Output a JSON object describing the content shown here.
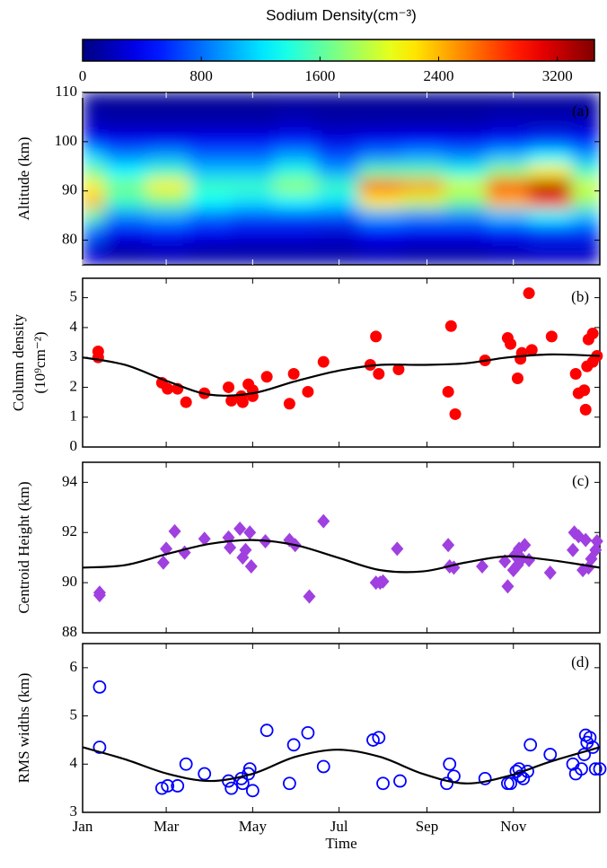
{
  "chart_data": [
    {
      "type": "heatmap",
      "colormap": "jet",
      "colorbar": {
        "label": "Sodium Density(cm⁻³)",
        "lim": [
          0,
          3450
        ],
        "ticks": [
          0,
          800,
          1600,
          2400,
          3200
        ]
      },
      "panel_label": "(a)",
      "ylabel": "Altitude (km)",
      "x": [
        0,
        30,
        60,
        90,
        120,
        150,
        180,
        210,
        240,
        270,
        300,
        330,
        360
      ],
      "y": [
        78,
        82,
        85,
        88,
        91,
        94,
        97,
        100,
        104,
        108
      ],
      "z": [
        [
          300,
          150,
          200,
          150,
          150,
          150,
          150,
          200,
          150,
          150,
          200,
          250,
          250
        ],
        [
          800,
          400,
          500,
          400,
          350,
          350,
          300,
          450,
          400,
          400,
          500,
          600,
          600
        ],
        [
          1600,
          900,
          1000,
          800,
          700,
          700,
          700,
          1000,
          900,
          900,
          1100,
          1300,
          1100
        ],
        [
          2400,
          1500,
          1700,
          1300,
          1200,
          1300,
          1200,
          2200,
          2000,
          1700,
          2400,
          2800,
          1800
        ],
        [
          2200,
          1700,
          2200,
          1500,
          1500,
          1800,
          1500,
          2700,
          2500,
          2000,
          2800,
          3300,
          2000
        ],
        [
          1700,
          1300,
          1500,
          1100,
          1100,
          1400,
          1000,
          1600,
          1600,
          1400,
          1800,
          2200,
          1500
        ],
        [
          1200,
          900,
          1000,
          800,
          800,
          1000,
          700,
          900,
          1000,
          900,
          1100,
          1300,
          1000
        ],
        [
          500,
          400,
          400,
          400,
          400,
          500,
          350,
          400,
          450,
          400,
          500,
          600,
          500
        ],
        [
          200,
          150,
          150,
          150,
          150,
          200,
          150,
          150,
          150,
          150,
          200,
          200,
          200
        ],
        [
          100,
          80,
          80,
          80,
          80,
          100,
          80,
          80,
          80,
          80,
          100,
          100,
          100
        ]
      ],
      "xlim": [
        0,
        365
      ],
      "ylim": [
        75,
        110
      ],
      "yticks": [
        80,
        90,
        100,
        110
      ]
    },
    {
      "type": "scatter",
      "panel_label": "(b)",
      "ylabel": [
        "Column density",
        "(10⁹cm⁻²)"
      ],
      "xlim": [
        0,
        365
      ],
      "ylim": [
        0,
        5.65
      ],
      "yticks": [
        0,
        1,
        2,
        3,
        4,
        5
      ],
      "series": [
        {
          "type": "scatter",
          "marker": "circle",
          "color": "#ff0000",
          "x": [
            11,
            11,
            56,
            60,
            67,
            73,
            86,
            103,
            105,
            112,
            113,
            117,
            120,
            120,
            130,
            146,
            149,
            159,
            170,
            203,
            207,
            209,
            223,
            258,
            260,
            263,
            284,
            300,
            302,
            307,
            309,
            310,
            315,
            317,
            331,
            348,
            350,
            354,
            355,
            356,
            357,
            360,
            360,
            363
          ],
          "values": [
            3.0,
            3.2,
            2.15,
            1.95,
            1.95,
            1.5,
            1.8,
            2.0,
            1.55,
            1.7,
            1.5,
            2.1,
            1.7,
            1.9,
            2.35,
            1.45,
            2.45,
            1.85,
            2.85,
            2.75,
            3.7,
            2.45,
            2.6,
            1.85,
            4.05,
            1.1,
            2.9,
            3.65,
            3.45,
            2.3,
            2.95,
            3.15,
            5.15,
            3.25,
            3.7,
            2.45,
            1.8,
            1.9,
            1.25,
            2.7,
            3.6,
            3.8,
            2.85,
            3.05
          ]
        },
        {
          "type": "line",
          "color": "#000000",
          "x": [
            0,
            30,
            60,
            90,
            120,
            150,
            180,
            210,
            240,
            270,
            300,
            330,
            365
          ],
          "values": [
            3.0,
            2.75,
            2.2,
            1.75,
            1.8,
            2.2,
            2.55,
            2.75,
            2.75,
            2.8,
            3.0,
            3.1,
            3.05
          ]
        }
      ]
    },
    {
      "type": "scatter",
      "panel_label": "(c)",
      "ylabel": "Centroid Height (km)",
      "xlim": [
        0,
        365
      ],
      "ylim": [
        88,
        94.8
      ],
      "yticks": [
        88,
        90,
        92,
        94
      ],
      "series": [
        {
          "type": "scatter",
          "marker": "diamond",
          "color": "#a040e0",
          "x": [
            12,
            12,
            57,
            59,
            65,
            72,
            86,
            103,
            104,
            111,
            113,
            115,
            118,
            119,
            129,
            146,
            150,
            160,
            170,
            207,
            210,
            212,
            222,
            258,
            259,
            262,
            282,
            298,
            300,
            304,
            305,
            307,
            308,
            310,
            312,
            315,
            330,
            346,
            347,
            350,
            353,
            355,
            357,
            359,
            362,
            363
          ],
          "values": [
            89.6,
            89.5,
            90.8,
            91.35,
            92.05,
            91.2,
            91.75,
            91.8,
            91.4,
            92.15,
            91.0,
            91.3,
            92.0,
            90.65,
            91.65,
            91.7,
            91.5,
            89.45,
            92.45,
            90.0,
            90.0,
            90.05,
            91.35,
            91.5,
            90.65,
            90.6,
            90.65,
            90.85,
            89.85,
            90.5,
            91.1,
            90.7,
            91.35,
            90.95,
            91.5,
            90.9,
            90.4,
            91.3,
            92.0,
            91.85,
            90.5,
            91.7,
            90.6,
            90.95,
            91.3,
            91.65
          ]
        },
        {
          "type": "line",
          "color": "#000000",
          "x": [
            0,
            30,
            60,
            90,
            120,
            150,
            180,
            210,
            240,
            270,
            300,
            330,
            365
          ],
          "values": [
            90.6,
            90.7,
            91.15,
            91.55,
            91.7,
            91.5,
            91.0,
            90.5,
            90.45,
            90.8,
            91.05,
            90.9,
            90.6
          ]
        }
      ]
    },
    {
      "type": "scatter",
      "panel_label": "(d)",
      "ylabel": "RMS widths (km)",
      "xlabel": "Time",
      "xlim": [
        0,
        365
      ],
      "ylim": [
        3,
        6.5
      ],
      "yticks": [
        3,
        4,
        5,
        6
      ],
      "xticks": [
        {
          "value": 0,
          "label": "Jan"
        },
        {
          "value": 59,
          "label": "Mar"
        },
        {
          "value": 120,
          "label": "May"
        },
        {
          "value": 181,
          "label": "Jul"
        },
        {
          "value": 243,
          "label": "Sep"
        },
        {
          "value": 304,
          "label": "Nov"
        }
      ],
      "series": [
        {
          "type": "scatter",
          "marker": "open-circle",
          "color": "#0000ff",
          "x": [
            12,
            12,
            56,
            60,
            67,
            73,
            86,
            103,
            105,
            112,
            113,
            117,
            118,
            120,
            130,
            146,
            149,
            159,
            170,
            205,
            209,
            212,
            224,
            257,
            259,
            262,
            284,
            300,
            302,
            306,
            308,
            309,
            311,
            314,
            316,
            330,
            346,
            348,
            352,
            354,
            355,
            356,
            358,
            360,
            362,
            365
          ],
          "values": [
            5.6,
            4.35,
            3.5,
            3.55,
            3.55,
            4.0,
            3.8,
            3.65,
            3.5,
            3.7,
            3.6,
            3.8,
            3.9,
            3.45,
            4.7,
            3.6,
            4.4,
            4.65,
            3.95,
            4.5,
            4.55,
            3.6,
            3.65,
            3.6,
            4.0,
            3.75,
            3.7,
            3.6,
            3.6,
            3.85,
            3.9,
            3.75,
            3.7,
            3.85,
            4.4,
            4.2,
            4.0,
            3.8,
            3.9,
            4.2,
            4.6,
            4.45,
            4.55,
            4.35,
            3.9,
            3.9
          ]
        },
        {
          "type": "line",
          "color": "#000000",
          "x": [
            0,
            30,
            60,
            90,
            120,
            150,
            180,
            210,
            240,
            270,
            300,
            330,
            365
          ],
          "values": [
            4.35,
            4.1,
            3.8,
            3.65,
            3.8,
            4.15,
            4.3,
            4.15,
            3.8,
            3.6,
            3.75,
            4.05,
            4.35
          ]
        }
      ]
    }
  ]
}
